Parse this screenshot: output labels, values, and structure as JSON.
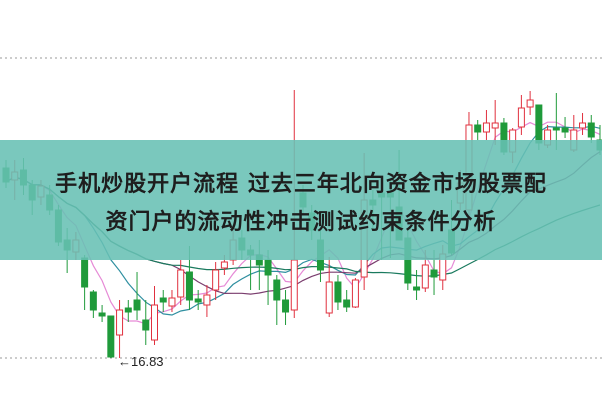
{
  "headline": {
    "line1": "手机炒股开户流程 过去三年北向资金市场股票配",
    "line2": "资门户的流动性冲击测试约束条件分析"
  },
  "chart_data": {
    "type": "candlestick",
    "ylim": [
      16.83,
      22.83
    ],
    "grid": "dotted top and bottom lines",
    "annotation": {
      "label": "16.83",
      "arrow": "←"
    },
    "colors": {
      "up": "#e0303e",
      "down": "#1f9a3a",
      "ma": [
        "#e68ad6",
        "#2f8fa0",
        "#7a3d6e",
        "#1a7a5e"
      ],
      "band": "#68c0b4"
    },
    "ohlc": [
      [
        20.63,
        20.79,
        20.23,
        20.35
      ],
      [
        20.39,
        20.79,
        19.99,
        20.55
      ],
      [
        20.59,
        20.83,
        20.09,
        20.29
      ],
      [
        20.29,
        20.39,
        19.69,
        19.99
      ],
      [
        20.05,
        20.39,
        19.89,
        20.27
      ],
      [
        20.09,
        20.29,
        19.69,
        19.79
      ],
      [
        19.79,
        19.89,
        19.07,
        19.15
      ],
      [
        19.19,
        19.43,
        18.53,
        18.99
      ],
      [
        18.95,
        19.35,
        18.79,
        19.19
      ],
      [
        18.83,
        18.89,
        17.79,
        18.25
      ],
      [
        18.15,
        18.19,
        17.63,
        17.79
      ],
      [
        17.73,
        17.89,
        17.55,
        17.67
      ],
      [
        17.67,
        17.67,
        16.83,
        16.85
      ],
      [
        17.29,
        17.99,
        16.83,
        17.79
      ],
      [
        17.83,
        17.99,
        17.55,
        17.75
      ],
      [
        17.99,
        18.55,
        17.59,
        17.79
      ],
      [
        17.59,
        17.99,
        17.09,
        17.39
      ],
      [
        17.19,
        18.27,
        17.09,
        17.89
      ],
      [
        18.03,
        18.19,
        17.75,
        17.95
      ],
      [
        17.87,
        18.19,
        17.75,
        18.03
      ],
      [
        18.05,
        18.79,
        17.89,
        18.59
      ],
      [
        18.55,
        19.07,
        17.79,
        17.99
      ],
      [
        18.01,
        18.19,
        17.79,
        17.95
      ],
      [
        17.89,
        18.29,
        17.65,
        18.09
      ],
      [
        18.19,
        18.75,
        17.99,
        18.59
      ],
      [
        18.63,
        18.89,
        18.49,
        18.75
      ],
      [
        18.79,
        19.39,
        18.69,
        19.19
      ],
      [
        19.23,
        19.39,
        18.79,
        18.99
      ],
      [
        18.99,
        19.09,
        18.19,
        18.89
      ],
      [
        18.89,
        19.19,
        18.19,
        18.69
      ],
      [
        18.79,
        18.99,
        17.89,
        18.49
      ],
      [
        18.39,
        18.49,
        17.49,
        17.99
      ],
      [
        17.99,
        18.19,
        17.49,
        17.75
      ],
      [
        17.79,
        22.19,
        17.63,
        18.79
      ],
      [
        20.13,
        20.29,
        19.69,
        19.85
      ],
      [
        19.73,
        19.89,
        19.19,
        19.39
      ],
      [
        19.19,
        19.39,
        18.35,
        18.59
      ],
      [
        17.73,
        18.85,
        17.65,
        18.35
      ],
      [
        18.35,
        18.49,
        17.79,
        17.95
      ],
      [
        17.99,
        18.19,
        17.75,
        17.85
      ],
      [
        17.85,
        18.43,
        17.83,
        18.39
      ],
      [
        18.45,
        20.93,
        18.19,
        19.99
      ],
      [
        19.99,
        20.19,
        19.39,
        19.89
      ],
      [
        20.13,
        20.33,
        18.79,
        20.05
      ],
      [
        20.13,
        20.39,
        18.83,
        20.05
      ],
      [
        19.85,
        20.99,
        19.19,
        19.19
      ],
      [
        19.23,
        19.39,
        18.19,
        18.33
      ],
      [
        18.25,
        18.59,
        17.99,
        18.19
      ],
      [
        18.23,
        18.99,
        18.15,
        18.69
      ],
      [
        18.59,
        18.99,
        18.09,
        18.45
      ],
      [
        18.39,
        19.09,
        18.19,
        18.91
      ],
      [
        19.39,
        19.99,
        18.89,
        18.93
      ],
      [
        19.93,
        20.59,
        19.79,
        20.33
      ],
      [
        19.79,
        21.75,
        19.69,
        21.49
      ],
      [
        21.49,
        21.59,
        21.19,
        21.35
      ],
      [
        21.35,
        21.79,
        21.19,
        21.53
      ],
      [
        21.43,
        21.99,
        21.09,
        21.53
      ],
      [
        21.53,
        21.63,
        20.89,
        20.95
      ],
      [
        20.95,
        21.43,
        20.73,
        21.39
      ],
      [
        21.45,
        22.09,
        21.29,
        21.83
      ],
      [
        21.85,
        22.17,
        21.69,
        21.99
      ],
      [
        21.89,
        21.89,
        20.99,
        21.13
      ],
      [
        21.09,
        21.49,
        21.03,
        21.39
      ],
      [
        21.43,
        22.13,
        20.99,
        21.39
      ],
      [
        21.43,
        21.65,
        21.23,
        21.35
      ],
      [
        20.99,
        21.69,
        20.95,
        21.39
      ],
      [
        21.43,
        21.73,
        21.29,
        21.53
      ],
      [
        21.53,
        21.69,
        21.13,
        21.25
      ],
      [
        21.19,
        21.49,
        20.89,
        20.99
      ]
    ]
  }
}
